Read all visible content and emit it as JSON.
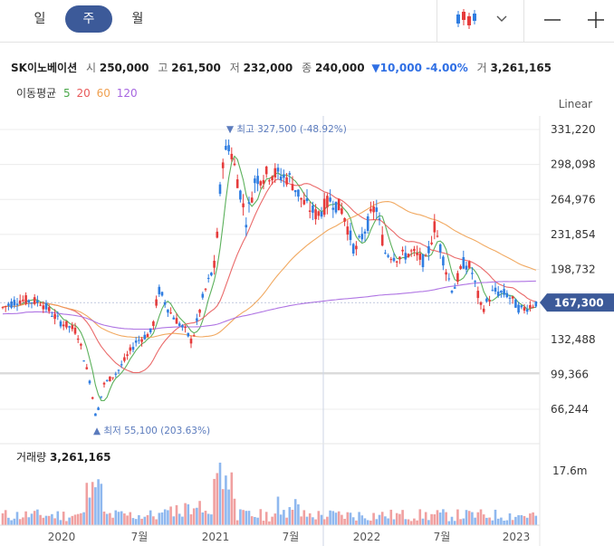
{
  "tabs": [
    {
      "label": "일"
    },
    {
      "label": "주"
    },
    {
      "label": "월"
    }
  ],
  "stock": {
    "name": "SK이노베이션",
    "open_label": "시",
    "open": "250,000",
    "high_label": "고",
    "high": "261,500",
    "low_label": "저",
    "low": "232,000",
    "close_label": "종",
    "close": "240,000",
    "change": "▼10,000 -4.00%",
    "volume_label": "거",
    "volume": "3,261,165"
  },
  "moving_average": {
    "label": "이동평균",
    "periods": [
      {
        "label": "5",
        "color": "#4aa84a"
      },
      {
        "label": "20",
        "color": "#e85a5a"
      },
      {
        "label": "60",
        "color": "#f0a050"
      },
      {
        "label": "120",
        "color": "#a665e0"
      }
    ]
  },
  "scale_mode": "Linear",
  "chart_data": {
    "type": "candlestick",
    "y_ticks": [
      "331,220",
      "298,098",
      "264,976",
      "231,854",
      "198,732",
      "132,488",
      "99,366",
      "66,244"
    ],
    "y_tick_values": [
      331220,
      298098,
      264976,
      231854,
      198732,
      132488,
      99366,
      66244
    ],
    "current_price_label": "167,300",
    "current_price": 167300,
    "max_annotation": "최고 327,500 (-48.92%)",
    "min_annotation": "최저 55,100 (203.63%)",
    "x_labels": [
      "2020",
      "7월",
      "2021",
      "7월",
      "2022",
      "7월",
      "2023"
    ],
    "volume_label": "거래량",
    "volume_value": "3,261,165",
    "volume_axis_label": "17.6m",
    "colors": {
      "up": "#e63b3b",
      "down": "#2f7de1",
      "current_badge": "#3c5a99",
      "annotation": "#5b7bbd"
    }
  }
}
